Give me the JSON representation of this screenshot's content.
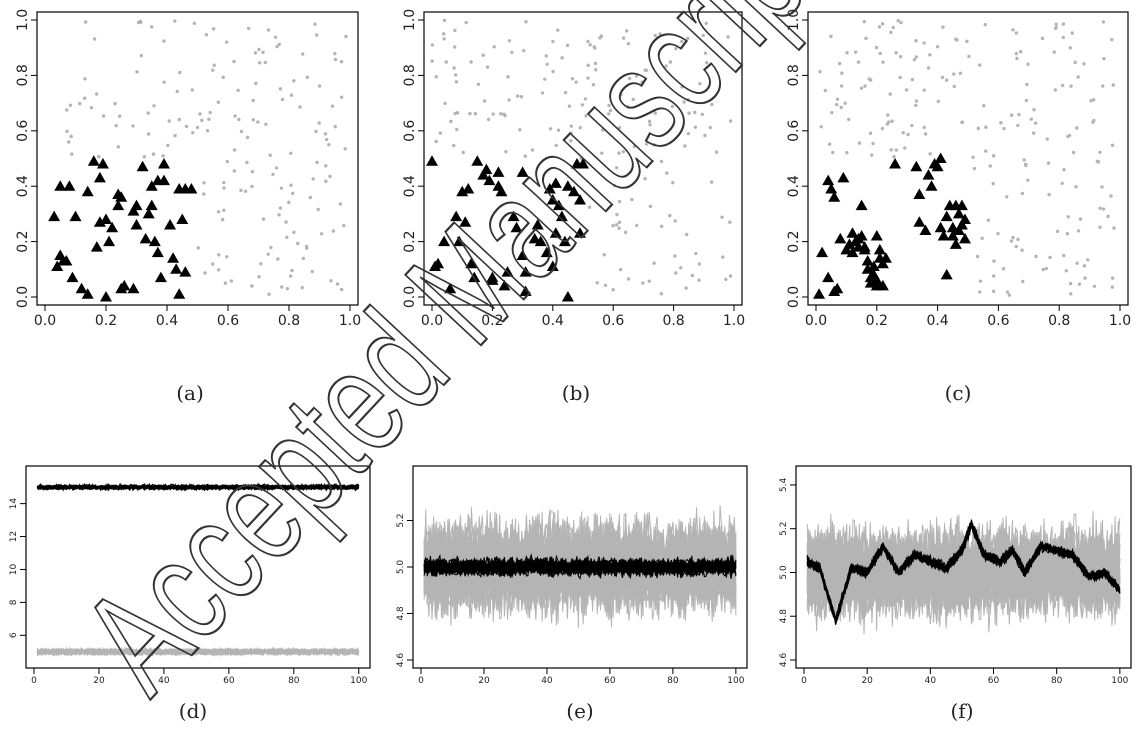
{
  "watermark": "Accepted Manuscript",
  "captions": [
    "(a)",
    "(b)",
    "(c)",
    "(d)",
    "(e)",
    "(f)"
  ],
  "colors": {
    "highlight": "#000000",
    "background": "#b4b4b4",
    "axis": "#000000"
  },
  "chart_data": [
    {
      "panel": "(a)",
      "type": "scatter",
      "xlim": [
        0,
        1
      ],
      "ylim": [
        0,
        1
      ],
      "xticks": [
        "0.0",
        "0.2",
        "0.4",
        "0.6",
        "0.8",
        "1.0"
      ],
      "yticks": [
        "0.0",
        "0.2",
        "0.4",
        "0.6",
        "0.8",
        "1.0"
      ],
      "series": [
        {
          "marker": "point",
          "color": "#b4b4b4",
          "seed": 11,
          "count": 170,
          "x_range": [
            0.05,
            0.99
          ],
          "y_range": [
            0.0,
            1.0
          ],
          "exclude_box": [
            0.0,
            0.5,
            0.0,
            0.5
          ]
        },
        {
          "marker": "triangle",
          "color": "#000000",
          "points": [
            [
              0.03,
              0.29
            ],
            [
              0.04,
              0.11
            ],
            [
              0.05,
              0.15
            ],
            [
              0.06,
              0.13
            ],
            [
              0.05,
              0.4
            ],
            [
              0.08,
              0.4
            ],
            [
              0.07,
              0.13
            ],
            [
              0.1,
              0.29
            ],
            [
              0.09,
              0.07
            ],
            [
              0.12,
              0.03
            ],
            [
              0.14,
              0.01
            ],
            [
              0.16,
              0.49
            ],
            [
              0.19,
              0.48
            ],
            [
              0.17,
              0.18
            ],
            [
              0.18,
              0.27
            ],
            [
              0.2,
              0.28
            ],
            [
              0.18,
              0.43
            ],
            [
              0.21,
              0.2
            ],
            [
              0.22,
              0.25
            ],
            [
              0.24,
              0.33
            ],
            [
              0.24,
              0.37
            ],
            [
              0.25,
              0.36
            ],
            [
              0.26,
              0.04
            ],
            [
              0.25,
              0.03
            ],
            [
              0.29,
              0.03
            ],
            [
              0.29,
              0.31
            ],
            [
              0.3,
              0.33
            ],
            [
              0.3,
              0.26
            ],
            [
              0.32,
              0.47
            ],
            [
              0.33,
              0.21
            ],
            [
              0.34,
              0.3
            ],
            [
              0.35,
              0.4
            ],
            [
              0.35,
              0.33
            ],
            [
              0.36,
              0.2
            ],
            [
              0.37,
              0.16
            ],
            [
              0.37,
              0.42
            ],
            [
              0.38,
              0.07
            ],
            [
              0.39,
              0.48
            ],
            [
              0.39,
              0.42
            ],
            [
              0.41,
              0.26
            ],
            [
              0.42,
              0.14
            ],
            [
              0.43,
              0.1
            ],
            [
              0.44,
              0.39
            ],
            [
              0.44,
              0.01
            ],
            [
              0.45,
              0.28
            ],
            [
              0.46,
              0.09
            ],
            [
              0.46,
              0.39
            ],
            [
              0.48,
              0.39
            ],
            [
              0.2,
              0.0
            ],
            [
              0.14,
              0.38
            ]
          ]
        }
      ]
    },
    {
      "panel": "(b)",
      "type": "scatter",
      "xlim": [
        0,
        1
      ],
      "ylim": [
        0,
        1
      ],
      "xticks": [
        "0.0",
        "0.2",
        "0.4",
        "0.6",
        "0.8",
        "1.0"
      ],
      "yticks": [
        "0.0",
        "0.2",
        "0.4",
        "0.6",
        "0.8",
        "1.0"
      ],
      "series": [
        {
          "marker": "point",
          "color": "#b4b4b4",
          "seed": 23,
          "count": 180,
          "x_range": [
            0.0,
            0.99
          ],
          "y_range": [
            0.0,
            1.0
          ],
          "exclude_box": [
            0.0,
            0.52,
            0.0,
            0.5
          ]
        },
        {
          "marker": "triangle",
          "color": "#000000",
          "points": [
            [
              0.0,
              0.49
            ],
            [
              0.01,
              0.11
            ],
            [
              0.02,
              0.12
            ],
            [
              0.04,
              0.2
            ],
            [
              0.06,
              0.03
            ],
            [
              0.08,
              0.29
            ],
            [
              0.09,
              0.2
            ],
            [
              0.1,
              0.38
            ],
            [
              0.11,
              0.27
            ],
            [
              0.12,
              0.39
            ],
            [
              0.13,
              0.12
            ],
            [
              0.14,
              0.07
            ],
            [
              0.15,
              0.49
            ],
            [
              0.17,
              0.44
            ],
            [
              0.18,
              0.46
            ],
            [
              0.19,
              0.42
            ],
            [
              0.2,
              0.07
            ],
            [
              0.2,
              0.06
            ],
            [
              0.22,
              0.45
            ],
            [
              0.22,
              0.4
            ],
            [
              0.23,
              0.38
            ],
            [
              0.24,
              0.04
            ],
            [
              0.25,
              0.09
            ],
            [
              0.27,
              0.29
            ],
            [
              0.28,
              0.25
            ],
            [
              0.3,
              0.45
            ],
            [
              0.3,
              0.15
            ],
            [
              0.31,
              0.09
            ],
            [
              0.31,
              0.02
            ],
            [
              0.34,
              0.21
            ],
            [
              0.35,
              0.26
            ],
            [
              0.36,
              0.2
            ],
            [
              0.38,
              0.16
            ],
            [
              0.39,
              0.39
            ],
            [
              0.4,
              0.11
            ],
            [
              0.4,
              0.35
            ],
            [
              0.41,
              0.41
            ],
            [
              0.42,
              0.33
            ],
            [
              0.43,
              0.29
            ],
            [
              0.44,
              0.2
            ],
            [
              0.45,
              0.4
            ],
            [
              0.45,
              0.0
            ],
            [
              0.47,
              0.38
            ],
            [
              0.48,
              0.48
            ],
            [
              0.49,
              0.35
            ],
            [
              0.5,
              0.48
            ],
            [
              0.49,
              0.23
            ],
            [
              0.41,
              0.23
            ]
          ]
        }
      ]
    },
    {
      "panel": "(c)",
      "type": "scatter",
      "xlim": [
        0,
        1
      ],
      "ylim": [
        0,
        1
      ],
      "xticks": [
        "0.0",
        "0.2",
        "0.4",
        "0.6",
        "0.8",
        "1.0"
      ],
      "yticks": [
        "0.0",
        "0.2",
        "0.4",
        "0.6",
        "0.8",
        "1.0"
      ],
      "series": [
        {
          "marker": "point",
          "color": "#b4b4b4",
          "seed": 37,
          "count": 200,
          "x_range": [
            0.0,
            1.0
          ],
          "y_range": [
            0.0,
            1.0
          ],
          "exclude_box": [
            0.0,
            0.5,
            0.0,
            0.5
          ]
        },
        {
          "marker": "triangle",
          "color": "#000000",
          "points": [
            [
              0.01,
              0.01
            ],
            [
              0.02,
              0.16
            ],
            [
              0.04,
              0.07
            ],
            [
              0.04,
              0.42
            ],
            [
              0.05,
              0.39
            ],
            [
              0.06,
              0.02
            ],
            [
              0.07,
              0.03
            ],
            [
              0.06,
              0.36
            ],
            [
              0.08,
              0.21
            ],
            [
              0.09,
              0.43
            ],
            [
              0.1,
              0.17
            ],
            [
              0.11,
              0.19
            ],
            [
              0.12,
              0.16
            ],
            [
              0.12,
              0.23
            ],
            [
              0.13,
              0.2
            ],
            [
              0.14,
              0.18
            ],
            [
              0.14,
              0.21
            ],
            [
              0.15,
              0.33
            ],
            [
              0.15,
              0.22
            ],
            [
              0.16,
              0.18
            ],
            [
              0.16,
              0.17
            ],
            [
              0.17,
              0.1
            ],
            [
              0.17,
              0.13
            ],
            [
              0.18,
              0.07
            ],
            [
              0.18,
              0.05
            ],
            [
              0.19,
              0.11
            ],
            [
              0.19,
              0.08
            ],
            [
              0.2,
              0.06
            ],
            [
              0.2,
              0.04
            ],
            [
              0.2,
              0.22
            ],
            [
              0.21,
              0.14
            ],
            [
              0.21,
              0.17
            ],
            [
              0.22,
              0.12
            ],
            [
              0.22,
              0.04
            ],
            [
              0.23,
              0.14
            ],
            [
              0.26,
              0.48
            ],
            [
              0.33,
              0.47
            ],
            [
              0.34,
              0.37
            ],
            [
              0.34,
              0.27
            ],
            [
              0.36,
              0.24
            ],
            [
              0.37,
              0.44
            ],
            [
              0.38,
              0.4
            ],
            [
              0.39,
              0.48
            ],
            [
              0.4,
              0.47
            ],
            [
              0.41,
              0.5
            ],
            [
              0.41,
              0.25
            ],
            [
              0.42,
              0.22
            ],
            [
              0.43,
              0.08
            ],
            [
              0.43,
              0.29
            ],
            [
              0.44,
              0.33
            ],
            [
              0.45,
              0.22
            ],
            [
              0.45,
              0.25
            ],
            [
              0.46,
              0.33
            ],
            [
              0.46,
              0.19
            ],
            [
              0.47,
              0.3
            ],
            [
              0.47,
              0.24
            ],
            [
              0.48,
              0.33
            ],
            [
              0.48,
              0.26
            ],
            [
              0.49,
              0.21
            ],
            [
              0.49,
              0.28
            ]
          ]
        }
      ]
    },
    {
      "panel": "(d)",
      "type": "line",
      "xlim": [
        0,
        101
      ],
      "ylim": [
        4.5,
        15.8
      ],
      "xticks": [
        "0",
        "20",
        "40",
        "60",
        "80",
        "100"
      ],
      "yticks": [
        "6",
        "8",
        "10",
        "12",
        "14"
      ],
      "series": [
        {
          "color": "#b4b4b4",
          "count": 40,
          "seed": 101,
          "n": 100,
          "mean": 5.0,
          "noise": 0.12
        },
        {
          "color": "#000000",
          "count": 20,
          "seed": 202,
          "n": 100,
          "mean": 15.0,
          "noise": 0.1
        }
      ]
    },
    {
      "panel": "(e)",
      "type": "line",
      "xlim": [
        0,
        101
      ],
      "ylim": [
        4.6,
        5.4
      ],
      "xticks": [
        "0",
        "20",
        "40",
        "60",
        "80",
        "100"
      ],
      "yticks": [
        "4.6",
        "4.8",
        "5.0",
        "5.2"
      ],
      "series": [
        {
          "color": "#b4b4b4",
          "count": 40,
          "seed": 303,
          "n": 100,
          "mean": 5.0,
          "noise": 0.13
        },
        {
          "color": "#000000",
          "count": 20,
          "seed": 404,
          "n": 100,
          "mean": 5.0,
          "noise": 0.025
        }
      ]
    },
    {
      "panel": "(f)",
      "type": "line",
      "xlim": [
        0,
        101
      ],
      "ylim": [
        4.6,
        5.45
      ],
      "xticks": [
        "0",
        "20",
        "40",
        "60",
        "80",
        "100"
      ],
      "yticks": [
        "4.6",
        "4.8",
        "5.0",
        "5.2",
        "5.4"
      ],
      "series": [
        {
          "color": "#b4b4b4",
          "count": 40,
          "seed": 505,
          "n": 100,
          "mean": 5.0,
          "noise": 0.13
        },
        {
          "color": "#000000",
          "count": 20,
          "seed": 606,
          "n": 100,
          "mean": 5.0,
          "noise": 0.015,
          "profile": [
            [
              1,
              5.05
            ],
            [
              5,
              5.02
            ],
            [
              10,
              4.78
            ],
            [
              15,
              5.02
            ],
            [
              20,
              5.0
            ],
            [
              25,
              5.12
            ],
            [
              30,
              5.0
            ],
            [
              35,
              5.08
            ],
            [
              40,
              5.05
            ],
            [
              45,
              5.02
            ],
            [
              50,
              5.1
            ],
            [
              53,
              5.22
            ],
            [
              57,
              5.08
            ],
            [
              62,
              5.05
            ],
            [
              66,
              5.1
            ],
            [
              70,
              5.0
            ],
            [
              75,
              5.12
            ],
            [
              80,
              5.1
            ],
            [
              85,
              5.08
            ],
            [
              90,
              4.98
            ],
            [
              95,
              5.0
            ],
            [
              100,
              4.92
            ]
          ]
        }
      ]
    }
  ]
}
